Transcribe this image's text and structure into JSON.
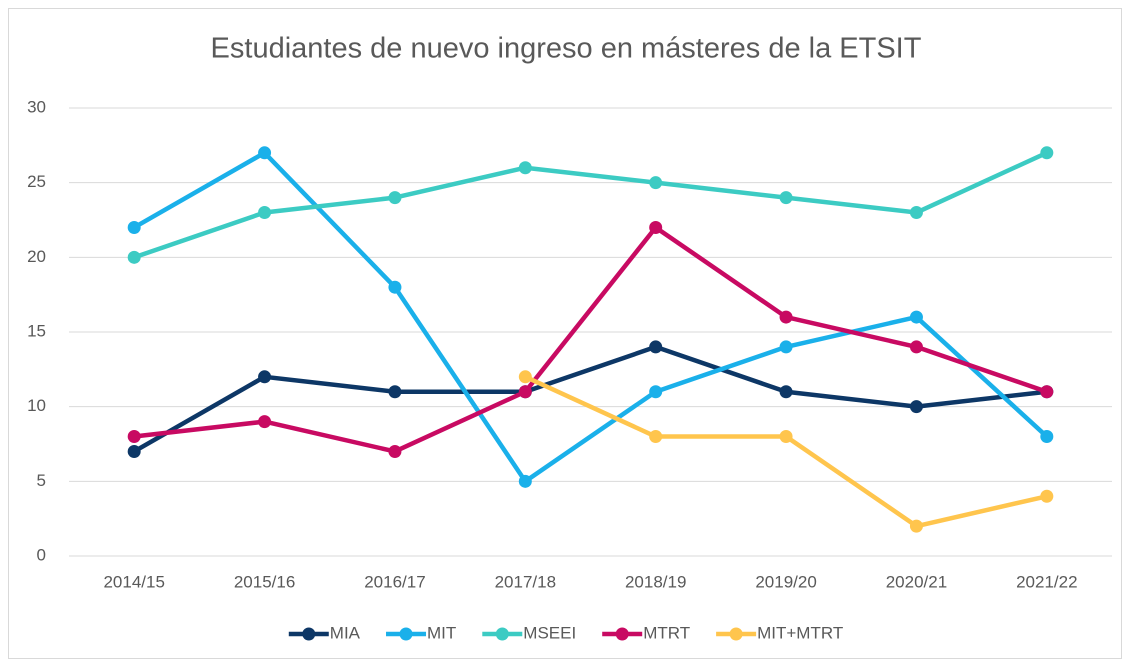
{
  "chart_data": {
    "type": "line",
    "title": "Estudiantes de nuevo ingreso en másteres de la ETSIT",
    "categories": [
      "2014/15",
      "2015/16",
      "2016/17",
      "2017/18",
      "2018/19",
      "2019/20",
      "2020/21",
      "2021/22"
    ],
    "series": [
      {
        "name": "MIA",
        "color": "#0d3766",
        "values": [
          7,
          12,
          11,
          11,
          14,
          11,
          10,
          11
        ]
      },
      {
        "name": "MIT",
        "color": "#1ab0ea",
        "values": [
          22,
          27,
          18,
          5,
          11,
          14,
          16,
          8
        ]
      },
      {
        "name": "MSEEI",
        "color": "#3ccbc3",
        "values": [
          20,
          23,
          24,
          26,
          25,
          24,
          23,
          27
        ]
      },
      {
        "name": "MTRT",
        "color": "#c80a62",
        "values": [
          8,
          9,
          7,
          11,
          22,
          16,
          14,
          11
        ]
      },
      {
        "name": "MIT+MTRT",
        "color": "#ffc54d",
        "values": [
          null,
          null,
          null,
          12,
          8,
          8,
          2,
          4
        ]
      }
    ],
    "ylim": [
      0,
      30
    ],
    "yticks": [
      0,
      5,
      10,
      15,
      20,
      25,
      30
    ],
    "grid": true,
    "legend": "bottom"
  }
}
